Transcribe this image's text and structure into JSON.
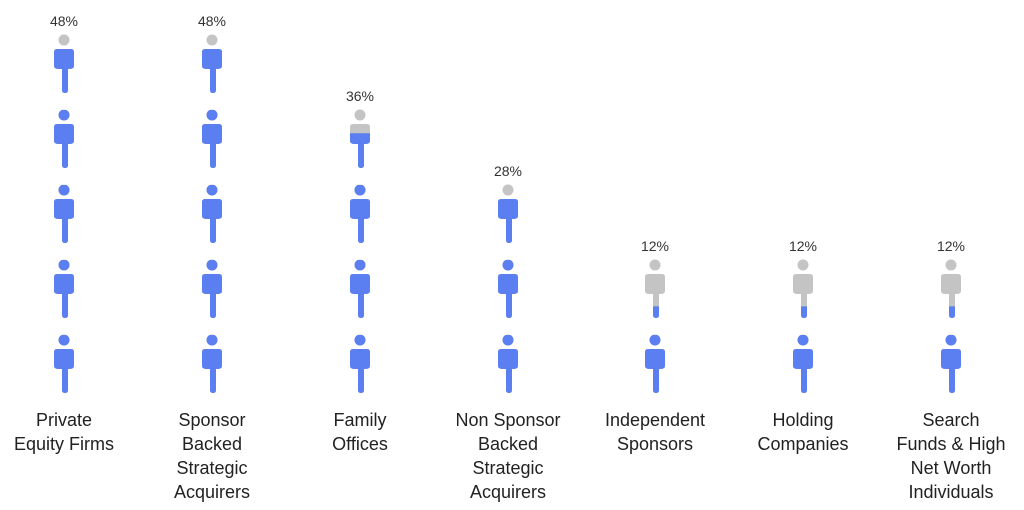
{
  "chart_data": {
    "type": "pictograph",
    "title": "",
    "xlabel": "",
    "ylabel": "",
    "icon": "person-icon",
    "icon_count": 5,
    "max_value": 50,
    "colors": {
      "filled": "#5b7ff0",
      "empty": "#c4c4c4"
    },
    "categories": [
      [
        "Private",
        "Equity Firms"
      ],
      [
        "Sponsor",
        "Backed",
        "Strategic",
        "Acquirers"
      ],
      [
        "Family",
        "Offices"
      ],
      [
        "Non Sponsor",
        "Backed",
        "Strategic",
        "Acquirers"
      ],
      [
        "Independent",
        "Sponsors"
      ],
      [
        "Holding",
        "Companies"
      ],
      [
        "Search",
        "Funds & High",
        "Net Worth",
        "Individuals"
      ]
    ],
    "values": [
      48,
      48,
      36,
      28,
      12,
      12,
      12
    ],
    "value_labels": [
      "48%",
      "48%",
      "36%",
      "28%",
      "12%",
      "12%",
      "12%"
    ]
  }
}
